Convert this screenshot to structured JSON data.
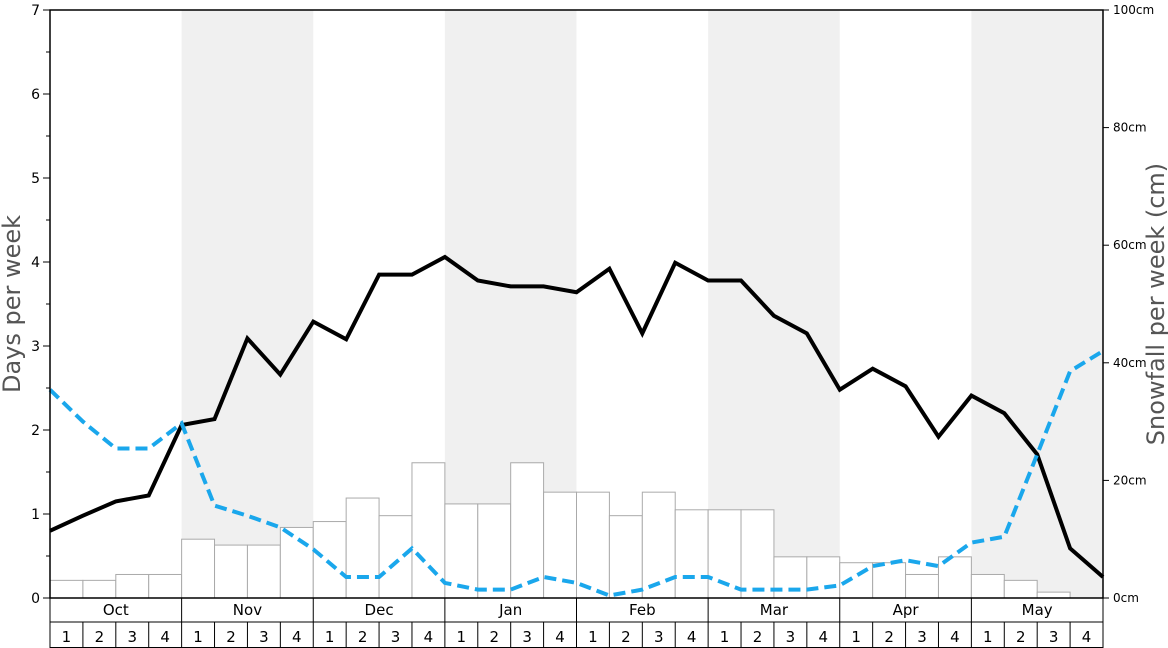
{
  "chart_data": {
    "type": "bar",
    "left_axis": {
      "label": "Days per week",
      "ylim": [
        0,
        7
      ],
      "ticks": [
        "0",
        "1",
        "2",
        "3",
        "4",
        "5",
        "6",
        "7"
      ]
    },
    "right_axis": {
      "label": "Snowfall per week (cm)",
      "ylim": [
        0,
        100
      ],
      "ticks": [
        "0cm",
        "20cm",
        "40cm",
        "60cm",
        "80cm",
        "100cm"
      ]
    },
    "months": [
      "Oct",
      "Nov",
      "Dec",
      "Jan",
      "Feb",
      "Mar",
      "Apr",
      "May"
    ],
    "weeks": [
      "1",
      "2",
      "3",
      "4"
    ],
    "shaded_months": [
      "Nov",
      "Jan",
      "Mar",
      "May"
    ],
    "grid": false,
    "series": [
      {
        "type": "bar",
        "axis": "left",
        "color": "#ffffff",
        "edge_color": "#aaaaaa",
        "values": [
          0.21,
          0.21,
          0.28,
          0.28,
          0.7,
          0.63,
          0.63,
          0.84,
          0.91,
          1.19,
          0.98,
          1.61,
          1.12,
          1.12,
          1.61,
          1.26,
          1.26,
          0.98,
          1.26,
          1.05,
          1.05,
          1.05,
          0.49,
          0.49,
          0.42,
          0.42,
          0.28,
          0.49,
          0.28,
          0.21,
          0.07,
          0.0
        ]
      },
      {
        "type": "line",
        "axis": "left",
        "color": "#000000",
        "dash": "solid",
        "values": [
          0.8,
          0.98,
          1.15,
          1.22,
          2.06,
          2.13,
          3.09,
          2.66,
          3.29,
          3.08,
          3.85,
          3.85,
          4.06,
          3.78,
          3.71,
          3.71,
          3.64,
          3.92,
          3.15,
          3.99,
          3.78,
          3.78,
          3.36,
          3.15,
          2.48,
          2.73,
          2.52,
          1.92,
          2.41,
          2.2,
          1.71,
          0.59,
          0.25
        ]
      },
      {
        "type": "line",
        "axis": "left",
        "color": "#1aa7ec",
        "dash": "dashed",
        "values": [
          2.48,
          2.1,
          1.78,
          1.78,
          2.08,
          1.1,
          0.98,
          0.84,
          0.58,
          0.25,
          0.25,
          0.59,
          0.18,
          0.1,
          0.1,
          0.25,
          0.18,
          0.03,
          0.1,
          0.25,
          0.25,
          0.1,
          0.1,
          0.1,
          0.15,
          0.38,
          0.45,
          0.38,
          0.66,
          0.73,
          1.71,
          2.7,
          2.94
        ]
      }
    ]
  }
}
